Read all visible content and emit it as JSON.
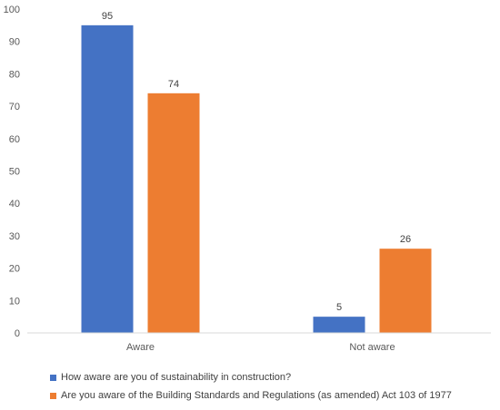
{
  "chart_data": {
    "type": "bar",
    "categories": [
      "Aware",
      "Not aware"
    ],
    "series": [
      {
        "name": "How aware are you of sustainability in construction?",
        "values": [
          95,
          5
        ],
        "color": "#4472C4"
      },
      {
        "name": "Are you aware of the Building Standards and Regulations (as amended) Act 103 of 1977",
        "values": [
          74,
          26
        ],
        "color": "#ED7D31"
      }
    ],
    "title": "",
    "xlabel": "",
    "ylabel": "",
    "ylim": [
      0,
      100
    ],
    "yticks": [
      0,
      10,
      20,
      30,
      40,
      50,
      60,
      70,
      80,
      90,
      100
    ],
    "grid": false,
    "data_labels": true,
    "legend_position": "bottom"
  }
}
